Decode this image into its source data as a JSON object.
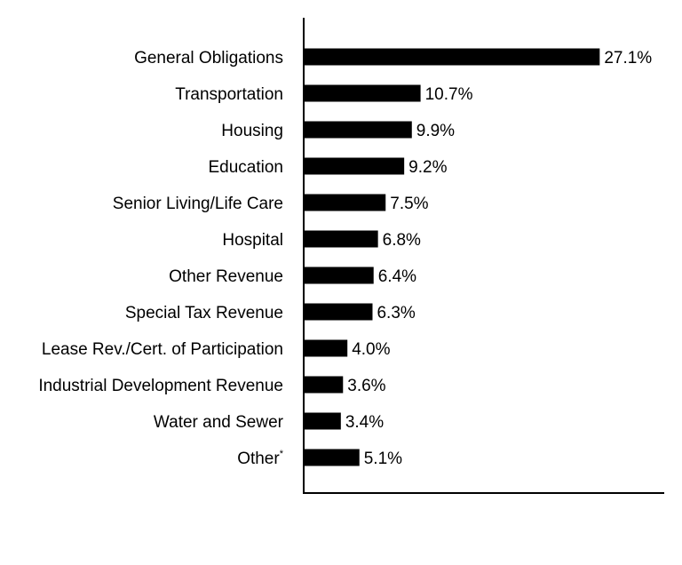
{
  "chart_data": {
    "type": "bar",
    "orientation": "horizontal",
    "categories": [
      "General Obligations",
      "Transportation",
      "Housing",
      "Education",
      "Senior Living/Life Care",
      "Hospital",
      "Other Revenue",
      "Special Tax Revenue",
      "Lease Rev./Cert. of Participation",
      "Industrial Development Revenue",
      "Water and Sewer",
      "Other"
    ],
    "category_footnotes": [
      "",
      "",
      "",
      "",
      "",
      "",
      "",
      "",
      "",
      "",
      "",
      "*"
    ],
    "values": [
      27.1,
      10.7,
      9.9,
      9.2,
      7.5,
      6.8,
      6.4,
      6.3,
      4.0,
      3.6,
      3.4,
      5.1
    ],
    "value_labels": [
      "27.1%",
      "10.7%",
      "9.9%",
      "9.2%",
      "7.5%",
      "6.8%",
      "6.4%",
      "6.3%",
      "4.0%",
      "3.6%",
      "3.4%",
      "5.1%"
    ],
    "bar_color": "#000000",
    "axis_color": "#000000",
    "grid": false,
    "legend": "none"
  }
}
